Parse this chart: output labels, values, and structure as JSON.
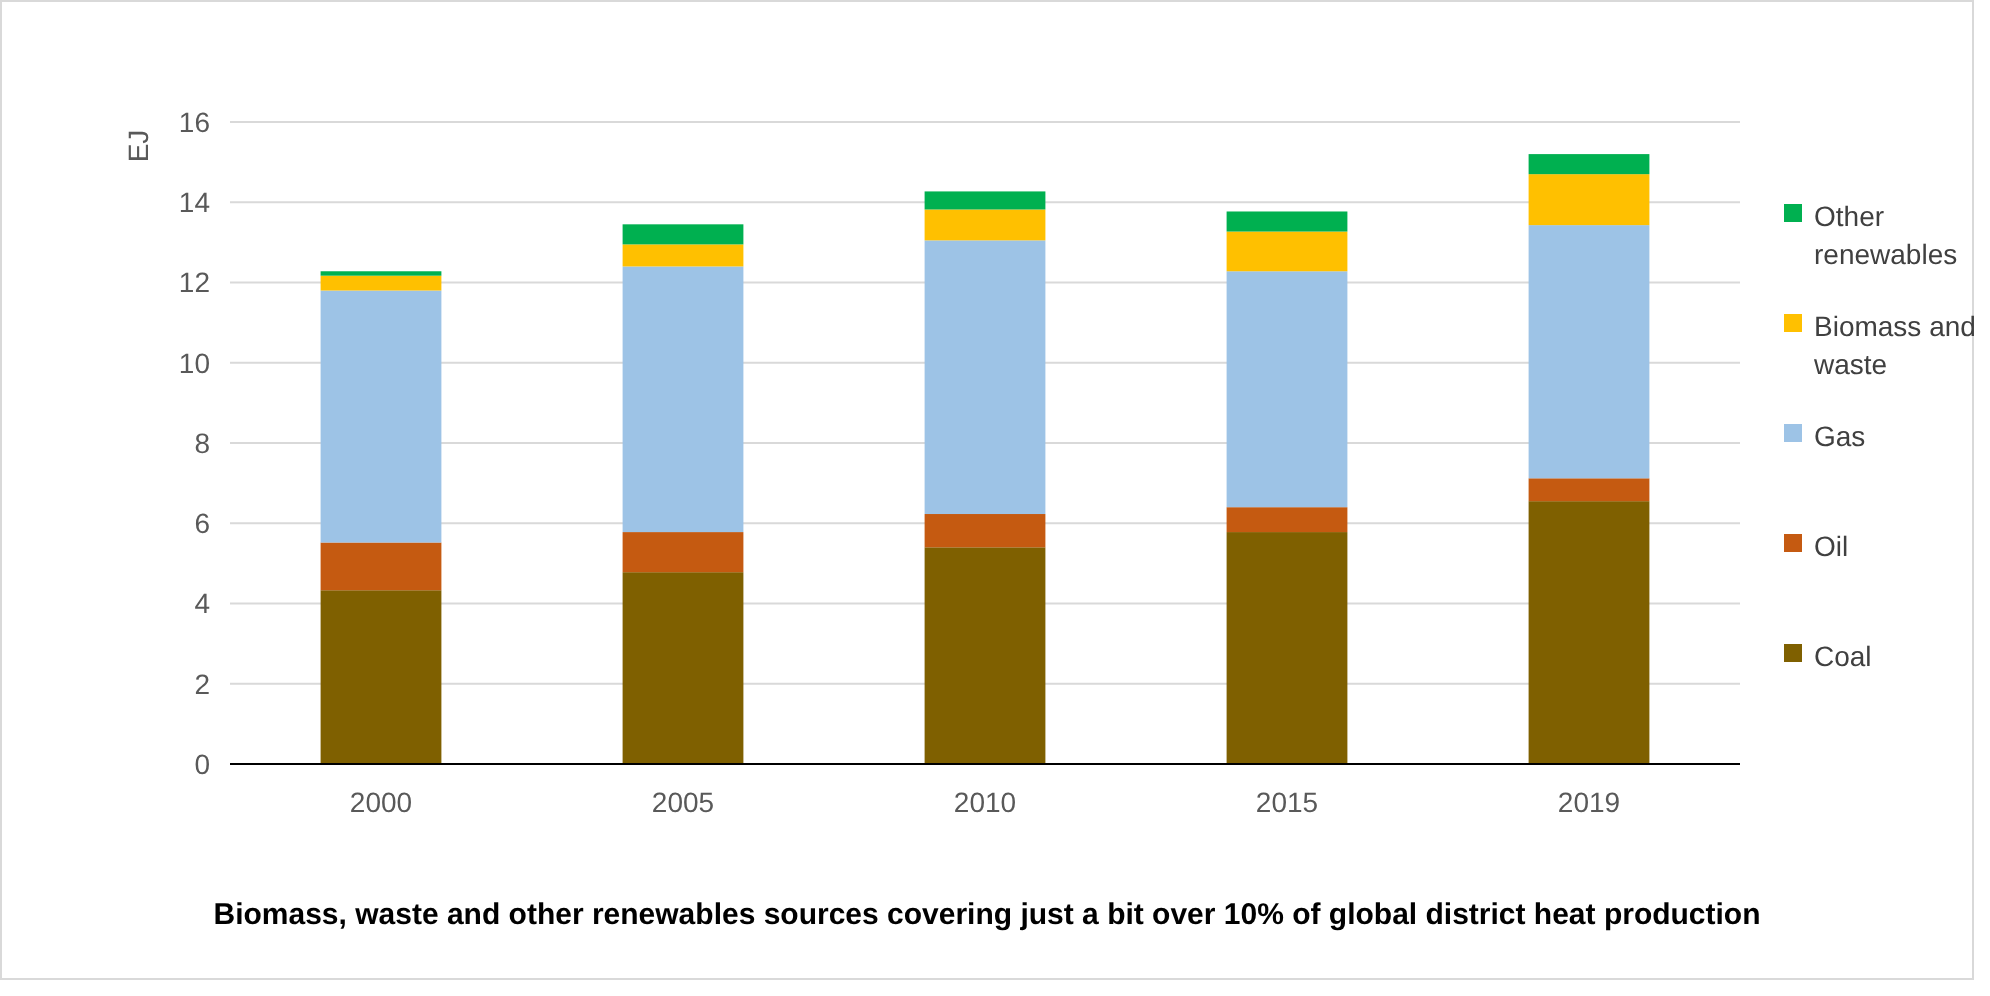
{
  "chart_data": {
    "type": "bar",
    "stacked": true,
    "title": "Biomass, waste and other renewables sources covering just a bit over 10% of global district heat production",
    "ylabel": "EJ",
    "categories": [
      "2000",
      "2005",
      "2010",
      "2015",
      "2019"
    ],
    "series": [
      {
        "name": "Coal",
        "color": "#7f6000",
        "values": [
          4.33,
          4.78,
          5.4,
          5.78,
          6.55
        ]
      },
      {
        "name": "Oil",
        "color": "#c55a11",
        "values": [
          1.19,
          1.0,
          0.83,
          0.62,
          0.57
        ]
      },
      {
        "name": "Gas",
        "color": "#9dc3e6",
        "values": [
          6.28,
          6.62,
          6.82,
          5.88,
          6.31
        ]
      },
      {
        "name": "Biomass and waste",
        "color": "#ffc000",
        "values": [
          0.37,
          0.55,
          0.77,
          0.99,
          1.27
        ]
      },
      {
        "name": "Other renewables",
        "color": "#00b050",
        "values": [
          0.11,
          0.5,
          0.45,
          0.5,
          0.5
        ]
      }
    ],
    "ylim": [
      0,
      16
    ],
    "yticks": [
      0,
      2,
      4,
      6,
      8,
      10,
      12,
      14,
      16
    ],
    "grid": "y",
    "legend": "right"
  }
}
